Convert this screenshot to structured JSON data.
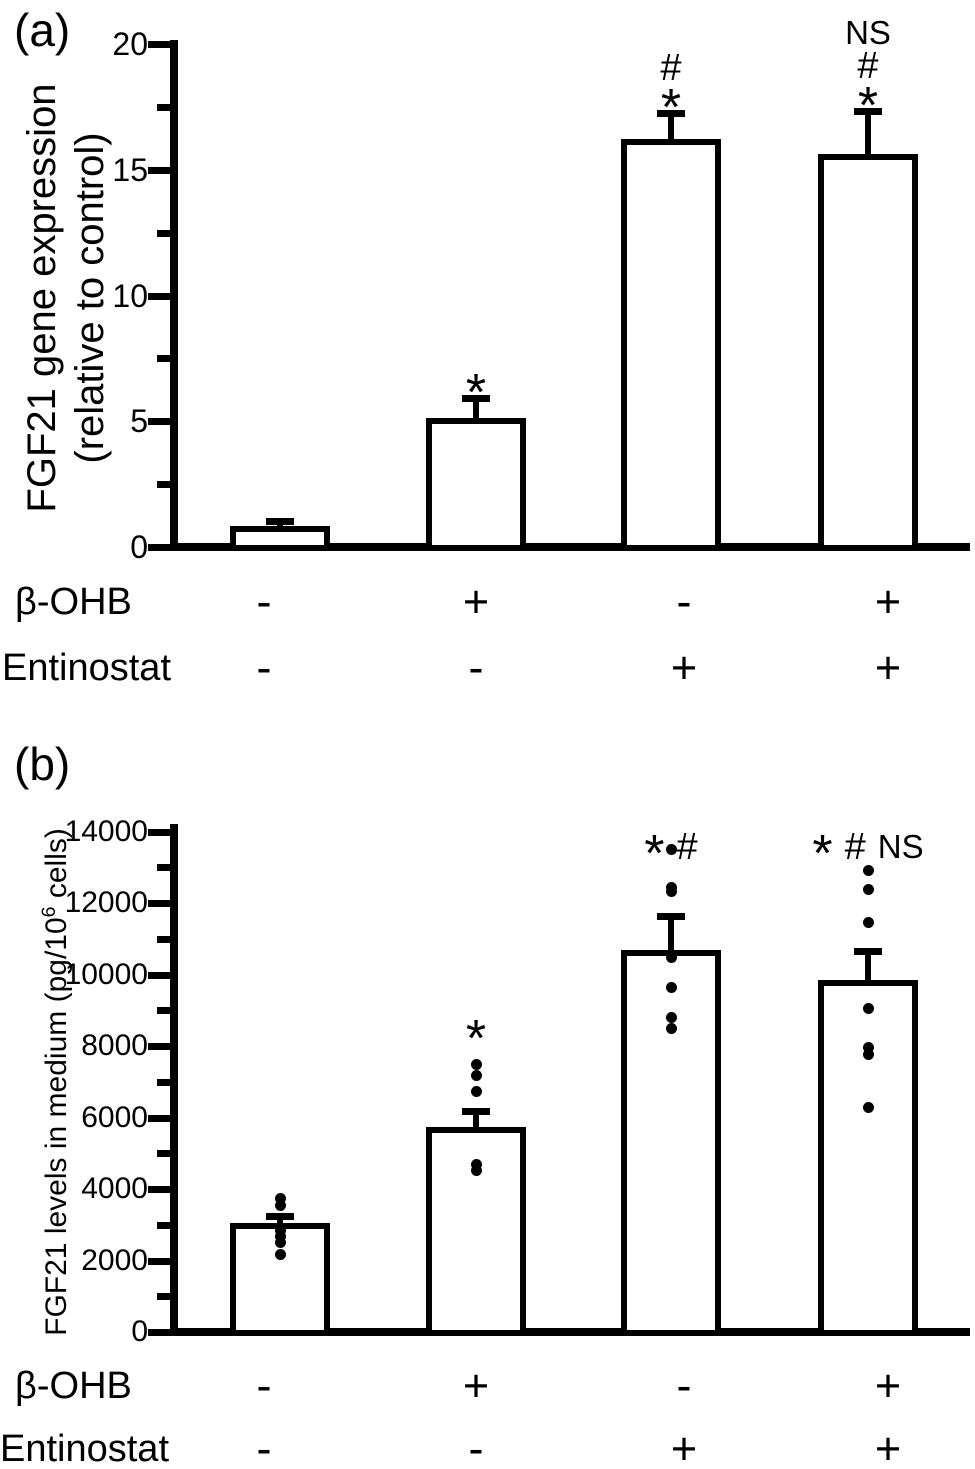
{
  "chart_data": [
    {
      "type": "bar",
      "panel_label": "(a)",
      "ylabel": "FGF21 gene expression (relative to control)",
      "ylabel_lines": [
        "FGF21 gene expression",
        "(relative to control)"
      ],
      "ylim": [
        0,
        20
      ],
      "yticks_major": [
        0,
        5,
        10,
        15,
        20
      ],
      "yticks_minor": [
        2.5,
        7.5,
        12.5,
        17.5
      ],
      "grid": false,
      "legend": "none",
      "bar_fill": "#ffffff",
      "bar_border": "#000000",
      "values": [
        1.0,
        5.3,
        16.4,
        15.8
      ],
      "errors": [
        0.2,
        0.8,
        1.0,
        1.7
      ],
      "points": [
        [],
        [],
        [],
        []
      ],
      "annotations": [
        [],
        [
          "*"
        ],
        [
          "*",
          "#"
        ],
        [
          "*",
          "#",
          "NS"
        ]
      ],
      "annotation_style": "stacked",
      "annotation_y": [
        null,
        null,
        null,
        null
      ],
      "treatments": [
        {
          "label": "β-OHB",
          "signs": [
            "-",
            "+",
            "-",
            "+"
          ]
        },
        {
          "label": "Entinostat",
          "signs": [
            "-",
            "-",
            "+",
            "+"
          ]
        }
      ]
    },
    {
      "type": "bar",
      "panel_label": "(b)",
      "ylabel_prefix": "FGF21 levels in medium (pg/10",
      "ylabel_sup": "6",
      "ylabel_suffix": " cells)",
      "ylim": [
        0,
        14000
      ],
      "yticks_major": [
        0,
        2000,
        4000,
        6000,
        8000,
        10000,
        12000,
        14000
      ],
      "yticks_minor": [
        1000,
        3000,
        5000,
        7000,
        9000,
        11000,
        13000
      ],
      "grid": false,
      "legend": "none",
      "bar_fill": "#ffffff",
      "bar_border": "#000000",
      "values": [
        3150,
        5850,
        10800,
        9950
      ],
      "errors": [
        210,
        450,
        950,
        830
      ],
      "points": [
        [
          3850,
          3640,
          2960,
          2780,
          2620,
          2290
        ],
        [
          7600,
          7300,
          6830,
          4810,
          4630
        ],
        [
          13620,
          12550,
          12430,
          10600,
          9760,
          8920,
          8615
        ],
        [
          13030,
          12480,
          11580,
          9170,
          8060,
          7870,
          6400
        ]
      ],
      "annotations": [
        [],
        [
          "*"
        ],
        [
          "*",
          "#"
        ],
        [
          "*",
          "#",
          "NS"
        ]
      ],
      "annotation_style": "inline",
      "annotation_y": [
        null,
        8500,
        13680,
        13680
      ],
      "treatments": [
        {
          "label": "β-OHB",
          "signs": [
            "-",
            "+",
            "-",
            "+"
          ]
        },
        {
          "label": "Entinostat",
          "signs": [
            "-",
            "-",
            "+",
            "+"
          ]
        }
      ]
    }
  ]
}
